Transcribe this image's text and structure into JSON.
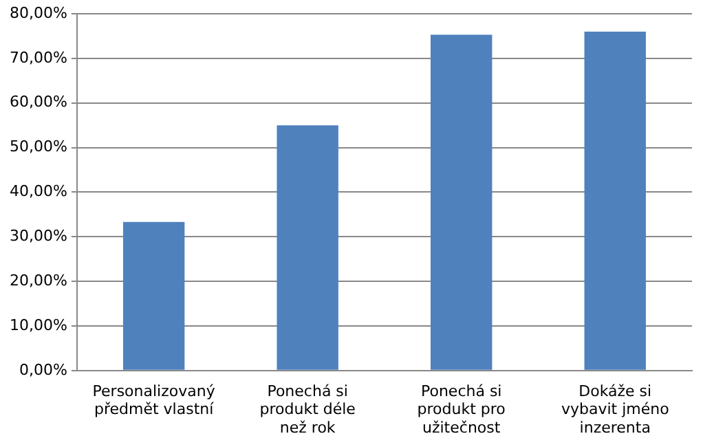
{
  "chart_data": {
    "type": "bar",
    "categories": [
      "Personalizovaný předmět vlastní",
      "Ponechá si produkt déle než rok",
      "Ponechá si produkt pro užitečnost",
      "Dokáže si vybavit jméno inzerenta"
    ],
    "values": [
      33.3,
      55,
      75.3,
      76
    ],
    "color": "#4f81bd",
    "ylim": [
      0,
      80
    ],
    "yticks": [
      {
        "value": 0,
        "label": "0,00%"
      },
      {
        "value": 10,
        "label": "10,00%"
      },
      {
        "value": 20,
        "label": "20,00%"
      },
      {
        "value": 30,
        "label": "30,00%"
      },
      {
        "value": 40,
        "label": "40,00%"
      },
      {
        "value": 50,
        "label": "50,00%"
      },
      {
        "value": 60,
        "label": "60,00%"
      },
      {
        "value": 70,
        "label": "70,00%"
      },
      {
        "value": 80,
        "label": "80,00%"
      }
    ],
    "grid": "y",
    "legend": false
  }
}
